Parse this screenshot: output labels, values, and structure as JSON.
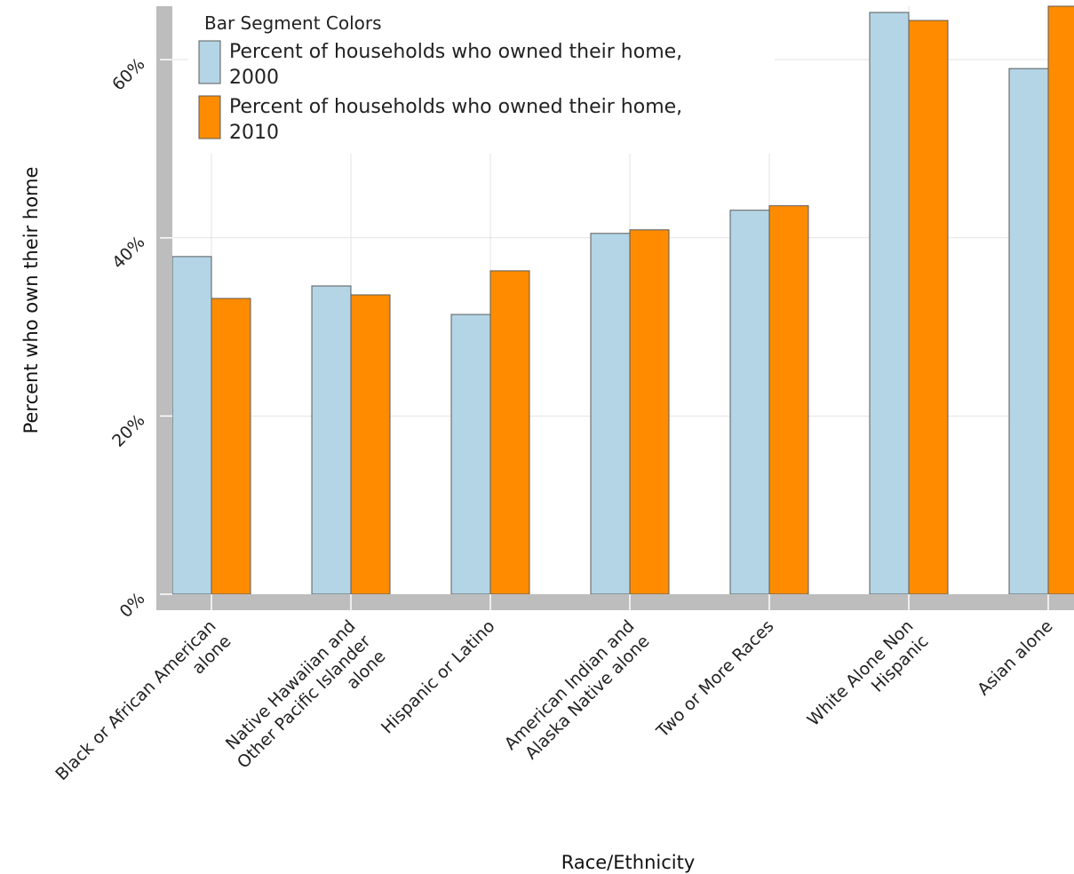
{
  "chart_data": {
    "type": "bar",
    "xlabel": "Race/Ethnicity",
    "ylabel": "Percent who own their home",
    "ylim": [
      0,
      66
    ],
    "yticks": [
      0,
      20,
      40,
      60
    ],
    "ytick_labels": [
      "0%",
      "20%",
      "40%",
      "60%"
    ],
    "grid": true,
    "legend_title": "Bar Segment Colors",
    "legend_position": "top-left",
    "categories": [
      [
        "Black or African American",
        "alone"
      ],
      [
        "Native Hawaiian and",
        "Other Pacific Islander",
        "alone"
      ],
      [
        "Hispanic or Latino"
      ],
      [
        "American Indian and",
        "Alaska Native alone"
      ],
      [
        "Two or More Races"
      ],
      [
        "White Alone Non",
        "Hispanic"
      ],
      [
        "Asian alone"
      ]
    ],
    "series": [
      {
        "name_lines": [
          "Percent of households who owned their home,",
          "2000"
        ],
        "color": "#b3d5e6",
        "values": [
          37.9,
          34.6,
          31.4,
          40.5,
          43.1,
          65.3,
          59.0
        ]
      },
      {
        "name_lines": [
          "Percent of households who owned their home,",
          "2010"
        ],
        "color": "#ff8c00",
        "values": [
          33.2,
          33.6,
          36.3,
          40.9,
          43.6,
          64.4,
          66.0
        ]
      }
    ]
  }
}
